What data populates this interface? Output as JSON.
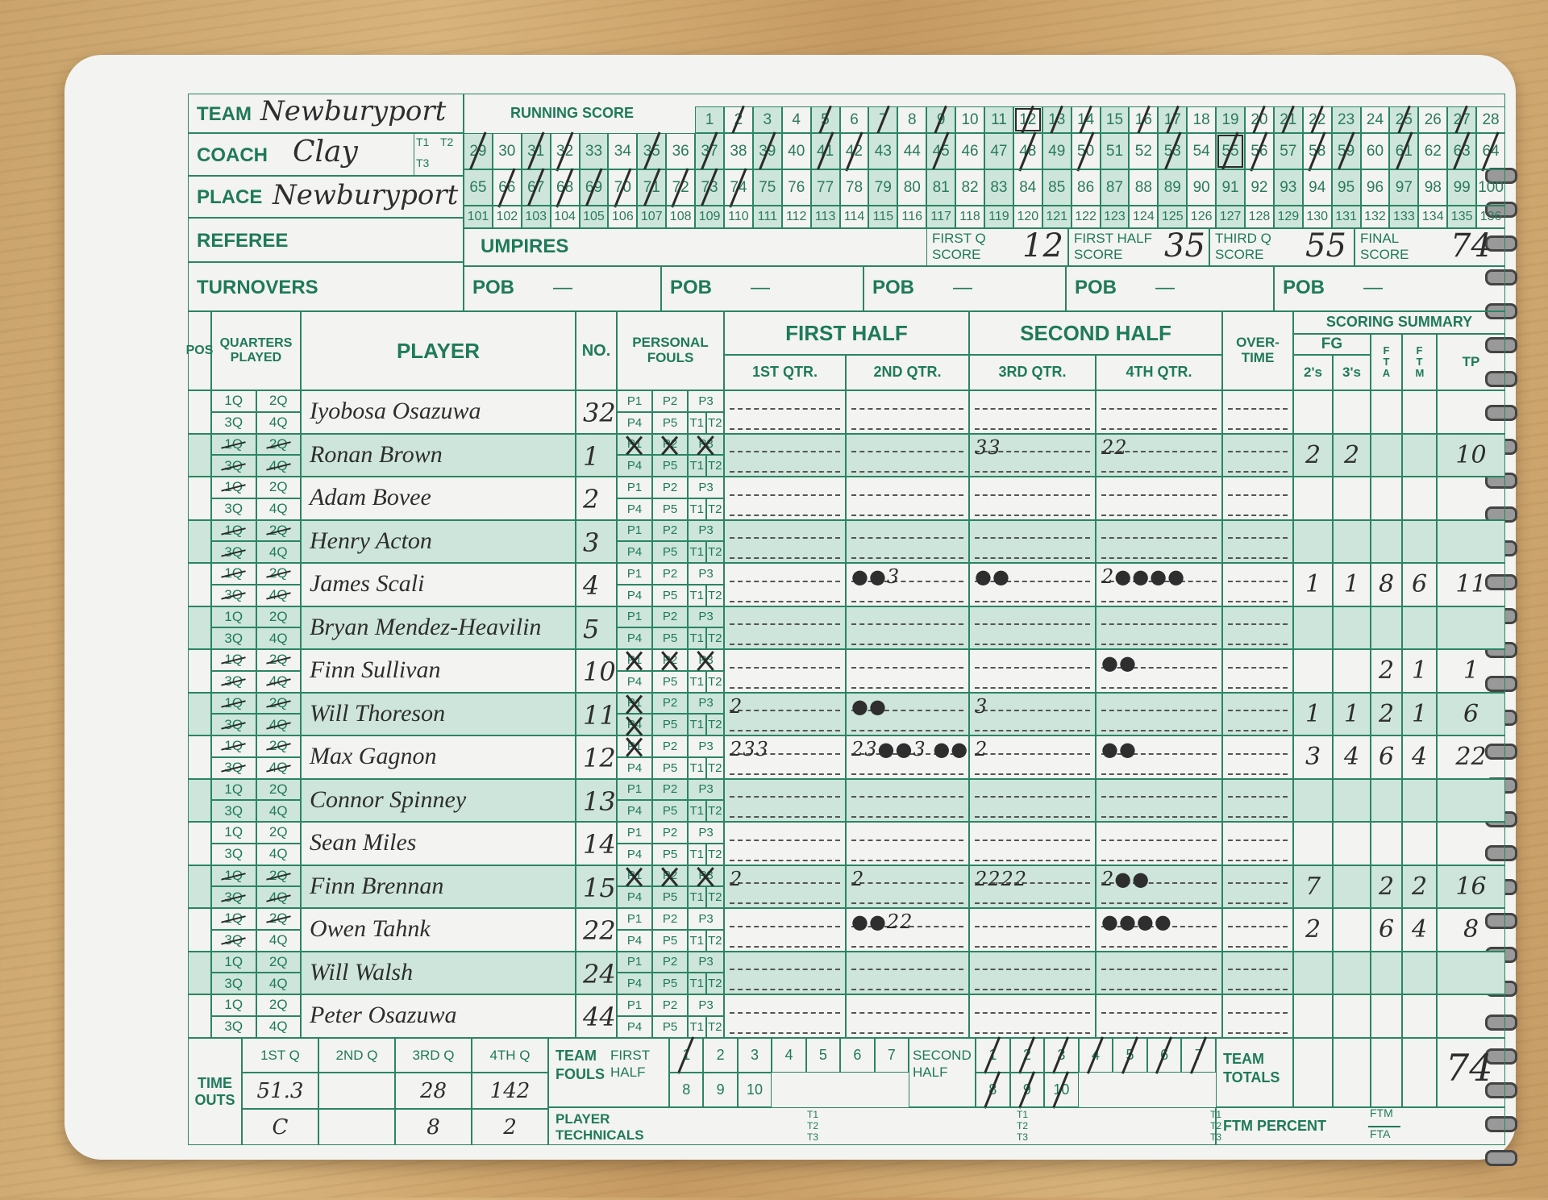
{
  "header": {
    "team_label": "TEAM",
    "team": "Newburyport",
    "coach_label": "COACH",
    "coach": "Clay",
    "place_label": "PLACE",
    "place": "Newburyport",
    "referee_label": "REFEREE",
    "umpires_label": "UMPIRES",
    "turnovers_label": "TURNOVERS",
    "t_labels": [
      "T1",
      "T2",
      "T3"
    ]
  },
  "running_score": {
    "label": "RUNNING SCORE",
    "rows": [
      [
        1,
        2,
        3,
        4,
        5,
        6,
        7,
        8,
        9,
        10,
        11,
        12,
        13,
        14,
        15,
        16,
        17,
        18,
        19,
        20,
        21,
        22,
        23,
        24,
        25,
        26,
        27,
        28
      ],
      [
        29,
        30,
        31,
        32,
        33,
        34,
        35,
        36,
        37,
        38,
        39,
        40,
        41,
        42,
        43,
        44,
        45,
        46,
        47,
        48,
        49,
        50,
        51,
        52,
        53,
        54,
        55,
        56,
        57,
        58,
        59,
        60,
        61,
        62,
        63,
        64
      ],
      [
        65,
        66,
        67,
        68,
        69,
        70,
        71,
        72,
        73,
        74,
        75,
        76,
        77,
        78,
        79,
        80,
        81,
        82,
        83,
        84,
        85,
        86,
        87,
        88,
        89,
        90,
        91,
        92,
        93,
        94,
        95,
        96,
        97,
        98,
        99,
        100
      ],
      [
        101,
        102,
        103,
        104,
        105,
        106,
        107,
        108,
        109,
        110,
        111,
        112,
        113,
        114,
        115,
        116,
        117,
        118,
        119,
        120,
        121,
        122,
        123,
        124,
        125,
        126,
        127,
        128,
        129,
        130,
        131,
        132,
        133,
        134,
        135,
        136
      ]
    ],
    "marked": [
      2,
      5,
      7,
      9,
      12,
      13,
      14,
      16,
      17,
      20,
      21,
      22,
      25,
      27,
      29,
      31,
      32,
      35,
      37,
      39,
      41,
      42,
      45,
      48,
      50,
      53,
      55,
      56,
      58,
      59,
      61,
      63,
      64,
      66,
      67,
      68,
      69,
      70,
      71,
      72,
      73,
      74
    ],
    "boxed": [
      12,
      55
    ]
  },
  "period_scores": [
    {
      "line1": "FIRST Q",
      "line2": "SCORE",
      "value": "12"
    },
    {
      "line1": "FIRST HALF",
      "line2": "SCORE",
      "value": "35"
    },
    {
      "line1": "THIRD Q",
      "line2": "SCORE",
      "value": "55"
    },
    {
      "line1": "FINAL",
      "line2": "SCORE",
      "value": "74"
    }
  ],
  "pob": [
    {
      "label": "POB",
      "value": "—"
    },
    {
      "label": "POB",
      "value": "—"
    },
    {
      "label": "POB",
      "value": "—"
    },
    {
      "label": "POB",
      "value": "—"
    },
    {
      "label": "POB",
      "value": "—"
    }
  ],
  "columns": {
    "pos": "POS",
    "quarters": "QUARTERS PLAYED",
    "player": "PLAYER",
    "no": "NO.",
    "fouls": "PERSONAL FOULS",
    "first_half": "FIRST HALF",
    "q1": "1ST QTR.",
    "q2": "2ND QTR.",
    "second_half": "SECOND HALF",
    "q3": "3RD QTR.",
    "q4": "4TH QTR.",
    "overtime": "OVER-TIME",
    "summary": "SCORING SUMMARY",
    "fg": "FG",
    "fg2": "2's",
    "fg3": "3's",
    "fta": "F T A",
    "ftm": "F T M",
    "tp": "TP"
  },
  "players": [
    {
      "name": "Iyobosa Osazuwa",
      "no": "32",
      "struck_q": [],
      "crossed_f": [],
      "q1": "",
      "q2": "",
      "q3": "",
      "q4": "",
      "fg2": "",
      "fg3": "",
      "fta": "",
      "ftm": "",
      "tp": ""
    },
    {
      "name": "Ronan Brown",
      "no": "1",
      "struck_q": [
        "1Q",
        "2Q",
        "3Q",
        "4Q"
      ],
      "crossed_f": [
        "P1",
        "P2",
        "P3"
      ],
      "q1": "",
      "q2": "",
      "q3": "33",
      "q4": "22",
      "fg2": "2",
      "fg3": "2",
      "fta": "",
      "ftm": "",
      "tp": "10"
    },
    {
      "name": "Adam Bovee",
      "no": "2",
      "struck_q": [
        "1Q"
      ],
      "crossed_f": [],
      "q1": "",
      "q2": "",
      "q3": "",
      "q4": "",
      "fg2": "",
      "fg3": "",
      "fta": "",
      "ftm": "",
      "tp": ""
    },
    {
      "name": "Henry Acton",
      "no": "3",
      "struck_q": [
        "1Q",
        "2Q",
        "3Q"
      ],
      "crossed_f": [],
      "q1": "",
      "q2": "",
      "q3": "",
      "q4": "",
      "fg2": "",
      "fg3": "",
      "fta": "",
      "ftm": "",
      "tp": ""
    },
    {
      "name": "James Scali",
      "no": "4",
      "struck_q": [
        "1Q",
        "2Q",
        "3Q",
        "4Q"
      ],
      "crossed_f": [],
      "q1": "",
      "q2": "●●3",
      "q3": "●●",
      "q4": "2●●●●",
      "fg2": "1",
      "fg3": "1",
      "fta": "8",
      "ftm": "6",
      "tp": "11"
    },
    {
      "name": "Bryan Mendez-Heavilin",
      "no": "5",
      "struck_q": [],
      "crossed_f": [],
      "q1": "",
      "q2": "",
      "q3": "",
      "q4": "",
      "fg2": "",
      "fg3": "",
      "fta": "",
      "ftm": "",
      "tp": ""
    },
    {
      "name": "Finn Sullivan",
      "no": "10",
      "struck_q": [
        "1Q",
        "2Q",
        "3Q",
        "4Q"
      ],
      "crossed_f": [
        "P1",
        "P2",
        "P3"
      ],
      "q1": "",
      "q2": "",
      "q3": "",
      "q4": "●●",
      "fg2": "",
      "fg3": "",
      "fta": "2",
      "ftm": "1",
      "tp": "1"
    },
    {
      "name": "Will Thoreson",
      "no": "11",
      "struck_q": [
        "1Q",
        "2Q",
        "3Q",
        "4Q"
      ],
      "crossed_f": [
        "P1",
        "P4"
      ],
      "q1": "2",
      "q2": "●●",
      "q3": "3",
      "q4": "",
      "fg2": "1",
      "fg3": "1",
      "fta": "2",
      "ftm": "1",
      "tp": "6"
    },
    {
      "name": "Max Gagnon",
      "no": "12",
      "struck_q": [
        "1Q",
        "2Q",
        "3Q",
        "4Q"
      ],
      "crossed_f": [
        "P1"
      ],
      "q1": "233",
      "q2": "23●●3 ●●",
      "q3": "2",
      "q4": "●●",
      "fg2": "3",
      "fg3": "4",
      "fta": "6",
      "ftm": "4",
      "tp": "22"
    },
    {
      "name": "Connor Spinney",
      "no": "13",
      "struck_q": [],
      "crossed_f": [],
      "q1": "",
      "q2": "",
      "q3": "",
      "q4": "",
      "fg2": "",
      "fg3": "",
      "fta": "",
      "ftm": "",
      "tp": ""
    },
    {
      "name": "Sean Miles",
      "no": "14",
      "struck_q": [],
      "crossed_f": [],
      "q1": "",
      "q2": "",
      "q3": "",
      "q4": "",
      "fg2": "",
      "fg3": "",
      "fta": "",
      "ftm": "",
      "tp": ""
    },
    {
      "name": "Finn Brennan",
      "no": "15",
      "struck_q": [
        "1Q",
        "2Q",
        "3Q",
        "4Q"
      ],
      "crossed_f": [
        "P1",
        "P2",
        "P3"
      ],
      "q1": "2",
      "q2": "2",
      "q3": "2222",
      "q4": "2●●",
      "fg2": "7",
      "fg3": "",
      "fta": "2",
      "ftm": "2",
      "tp": "16"
    },
    {
      "name": "Owen Tahnk",
      "no": "22",
      "struck_q": [
        "1Q",
        "2Q",
        "3Q"
      ],
      "crossed_f": [],
      "q1": "",
      "q2": "●●22",
      "q3": "",
      "q4": "●●●●",
      "fg2": "2",
      "fg3": "",
      "fta": "6",
      "ftm": "4",
      "tp": "8"
    },
    {
      "name": "Will Walsh",
      "no": "24",
      "struck_q": [],
      "crossed_f": [],
      "q1": "",
      "q2": "",
      "q3": "",
      "q4": "",
      "fg2": "",
      "fg3": "",
      "fta": "",
      "ftm": "",
      "tp": ""
    },
    {
      "name": "Peter Osazuwa",
      "no": "44",
      "struck_q": [],
      "crossed_f": [],
      "q1": "",
      "q2": "",
      "q3": "",
      "q4": "",
      "fg2": "",
      "fg3": "",
      "fta": "",
      "ftm": "",
      "tp": ""
    }
  ],
  "quarter_labels": [
    "1Q",
    "2Q",
    "3Q",
    "4Q"
  ],
  "foul_labels": [
    "P1",
    "P2",
    "P3",
    "P4",
    "P5",
    "T1",
    "T2"
  ],
  "bottom": {
    "timeouts_label": "TIME OUTS",
    "quarters": [
      "1ST Q",
      "2ND Q",
      "3RD Q",
      "4TH Q"
    ],
    "timeouts_row1": [
      "51.3",
      "",
      "28",
      "142"
    ],
    "timeouts_row2": [
      "C",
      "",
      "8",
      "2"
    ],
    "team_fouls_label": "TEAM FOULS",
    "first_half_label": "FIRST HALF",
    "second_half_label": "SECOND HALF",
    "first_half_fouls": [
      {
        "n": "1",
        "m": true
      },
      {
        "n": "2",
        "m": false
      },
      {
        "n": "3",
        "m": false
      },
      {
        "n": "4",
        "m": false
      },
      {
        "n": "5",
        "m": false
      },
      {
        "n": "6",
        "m": false
      },
      {
        "n": "7",
        "m": false
      },
      {
        "n": "8",
        "m": false
      },
      {
        "n": "9",
        "m": false
      },
      {
        "n": "10",
        "m": false
      }
    ],
    "second_half_fouls": [
      {
        "n": "1",
        "m": true
      },
      {
        "n": "2",
        "m": true
      },
      {
        "n": "3",
        "m": true
      },
      {
        "n": "4",
        "m": true
      },
      {
        "n": "5",
        "m": true
      },
      {
        "n": "6",
        "m": true
      },
      {
        "n": "7",
        "m": true
      },
      {
        "n": "8",
        "m": true
      },
      {
        "n": "9",
        "m": true
      },
      {
        "n": "10",
        "m": true
      }
    ],
    "team_totals_label": "TEAM TOTALS",
    "team_total_tp": "74",
    "player_technicals_label": "PLAYER TECHNICALS",
    "ftm_percent_label": "FTM PERCENT",
    "ftm": "FTM",
    "fta": "FTA"
  },
  "colors": {
    "ink_green": "#1e7a5a",
    "shade": "#cde5da",
    "paper": "#f3f3f1",
    "pencil": "#2e2e2e"
  }
}
